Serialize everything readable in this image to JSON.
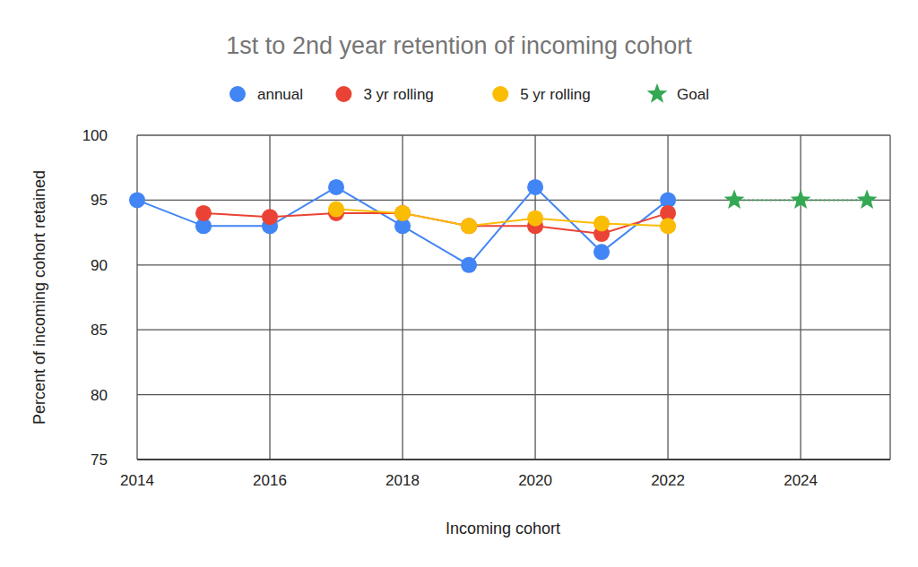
{
  "chart_data": {
    "type": "line",
    "title": "1st to 2nd year retention of incoming cohort",
    "x_label": "Incoming cohort",
    "y_label": "Percent of incoming cohort retained",
    "x": [
      2014,
      2015,
      2016,
      2017,
      2018,
      2019,
      2020,
      2021,
      2022,
      2023,
      2024,
      2025
    ],
    "series": [
      {
        "name": "annual",
        "color": "#4285f4",
        "marker": "circle",
        "line_style": "solid",
        "values": [
          95,
          93,
          93,
          96,
          93,
          90,
          96,
          91,
          95,
          null,
          null,
          null
        ]
      },
      {
        "name": "3 yr rolling",
        "color": "#ea4335",
        "marker": "circle",
        "line_style": "solid",
        "values": [
          null,
          94,
          93.7,
          94,
          94,
          93,
          93,
          92.4,
          94,
          null,
          null,
          null
        ]
      },
      {
        "name": "5 yr rolling",
        "color": "#fbbc04",
        "marker": "circle",
        "line_style": "solid",
        "values": [
          null,
          null,
          null,
          94.3,
          94,
          93,
          93.6,
          93.2,
          93,
          null,
          null,
          null
        ]
      },
      {
        "name": "Goal",
        "color": "#34a853",
        "marker": "star",
        "line_style": "dotted",
        "values": [
          null,
          null,
          null,
          null,
          null,
          null,
          null,
          null,
          null,
          95,
          95,
          95
        ]
      }
    ],
    "xlim": [
      2014,
      2025.35
    ],
    "xticks": [
      2014,
      2016,
      2018,
      2020,
      2022,
      2024
    ],
    "ylim": [
      75,
      100
    ],
    "yticks": [
      75,
      80,
      85,
      90,
      95,
      100
    ],
    "grid": true,
    "legend": "top"
  }
}
